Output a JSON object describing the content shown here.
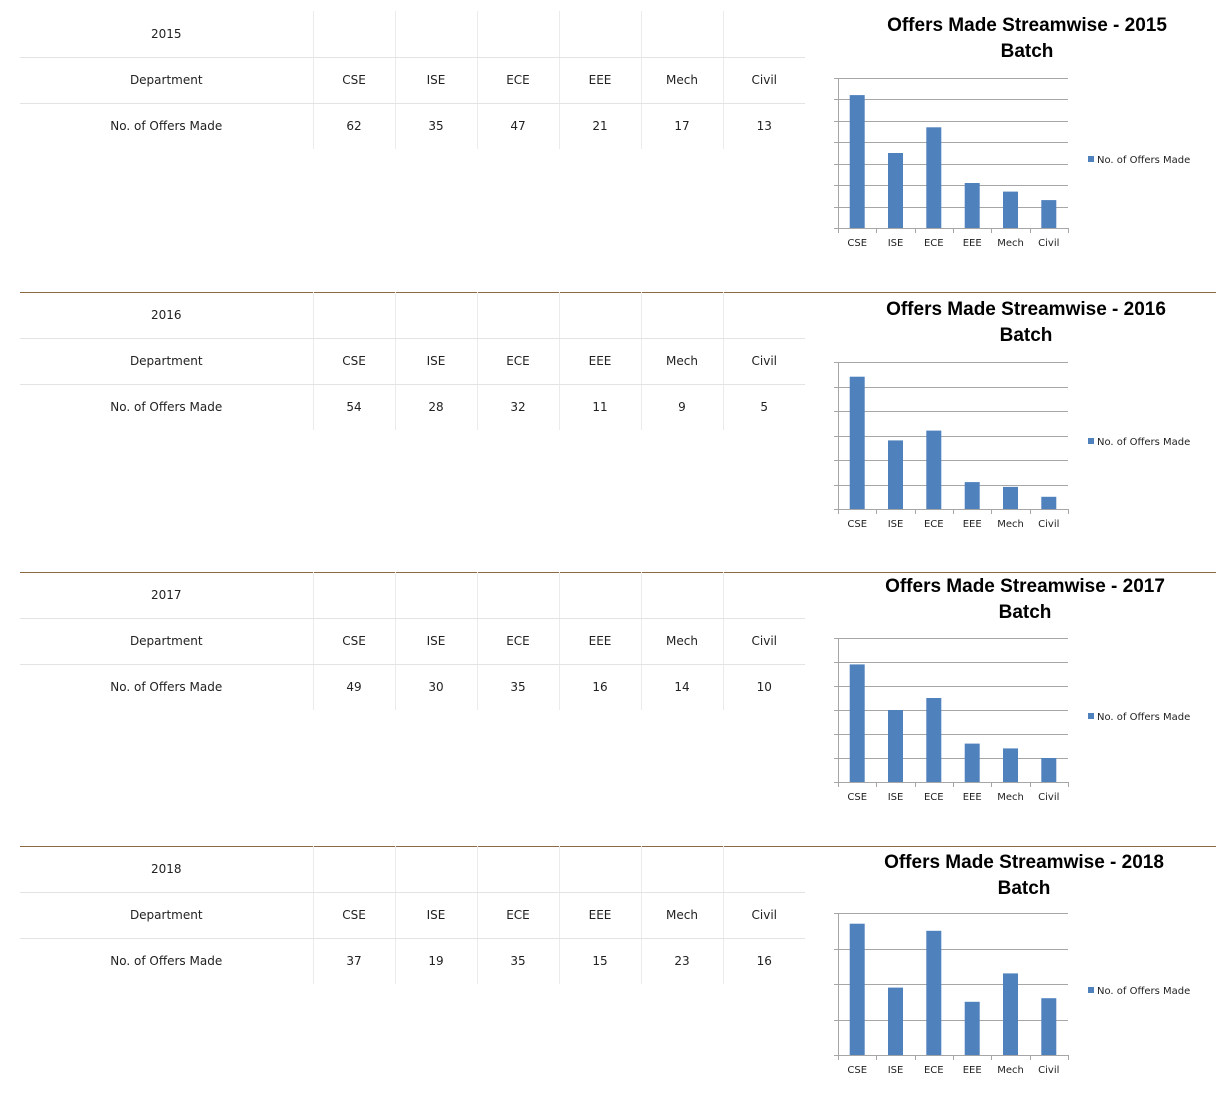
{
  "colors": {
    "bar": "#4f81bd",
    "grid": "#a6a6a6",
    "divider": "#8b6a43"
  },
  "sections": [
    {
      "year": "2015",
      "table": {
        "header_label": "Department",
        "row_label": "No. of Offers Made",
        "departments": [
          "CSE",
          "ISE",
          "ECE",
          "EEE",
          "Mech",
          "Civil"
        ],
        "offers": [
          "62",
          "35",
          "47",
          "21",
          "17",
          "13"
        ]
      },
      "chart_title_line1": "Offers Made Streamwise - 2015",
      "chart_title_line2": "Batch"
    },
    {
      "year": "2016",
      "table": {
        "header_label": "Department",
        "row_label": "No. of Offers Made",
        "departments": [
          "CSE",
          "ISE",
          "ECE",
          "EEE",
          "Mech",
          "Civil"
        ],
        "offers": [
          "54",
          "28",
          "32",
          "11",
          "9",
          "5"
        ]
      },
      "chart_title_line1": "Offers Made Streamwise - 2016",
      "chart_title_line2": "Batch"
    },
    {
      "year": "2017",
      "table": {
        "header_label": "Department",
        "row_label": "No. of Offers Made",
        "departments": [
          "CSE",
          "ISE",
          "ECE",
          "EEE",
          "Mech",
          "Civil"
        ],
        "offers": [
          "49",
          "30",
          "35",
          "16",
          "14",
          "10"
        ]
      },
      "chart_title_line1": "Offers Made Streamwise - 2017",
      "chart_title_line2": "Batch"
    },
    {
      "year": "2018",
      "table": {
        "header_label": "Department",
        "row_label": "No. of Offers Made",
        "departments": [
          "CSE",
          "ISE",
          "ECE",
          "EEE",
          "Mech",
          "Civil"
        ],
        "offers": [
          "37",
          "19",
          "35",
          "15",
          "23",
          "16"
        ]
      },
      "chart_title_line1": "Offers Made Streamwise - 2018",
      "chart_title_line2": "Batch"
    }
  ],
  "chart_data": [
    {
      "type": "bar",
      "title": "Offers Made Streamwise - 2015 Batch",
      "categories": [
        "CSE",
        "ISE",
        "ECE",
        "EEE",
        "Mech",
        "Civil"
      ],
      "series": [
        {
          "name": "No. of Offers Made",
          "values": [
            62,
            35,
            47,
            21,
            17,
            13
          ]
        }
      ],
      "ylim": [
        0,
        70
      ],
      "grid": true,
      "legend": "right",
      "y_tick_labels_visible": false
    },
    {
      "type": "bar",
      "title": "Offers Made Streamwise - 2016 Batch",
      "categories": [
        "CSE",
        "ISE",
        "ECE",
        "EEE",
        "Mech",
        "Civil"
      ],
      "series": [
        {
          "name": "No. of Offers Made",
          "values": [
            54,
            28,
            32,
            11,
            9,
            5
          ]
        }
      ],
      "ylim": [
        0,
        60
      ],
      "grid": true,
      "legend": "right",
      "y_tick_labels_visible": false
    },
    {
      "type": "bar",
      "title": "Offers Made Streamwise - 2017 Batch",
      "categories": [
        "CSE",
        "ISE",
        "ECE",
        "EEE",
        "Mech",
        "Civil"
      ],
      "series": [
        {
          "name": "No. of Offers Made",
          "values": [
            49,
            30,
            35,
            16,
            14,
            10
          ]
        }
      ],
      "ylim": [
        0,
        60
      ],
      "grid": true,
      "legend": "right",
      "y_tick_labels_visible": false
    },
    {
      "type": "bar",
      "title": "Offers Made Streamwise - 2018 Batch",
      "categories": [
        "CSE",
        "ISE",
        "ECE",
        "EEE",
        "Mech",
        "Civil"
      ],
      "series": [
        {
          "name": "No. of Offers Made",
          "values": [
            37,
            19,
            35,
            15,
            23,
            16
          ]
        }
      ],
      "ylim": [
        0,
        40
      ],
      "grid": true,
      "legend": "right",
      "y_tick_labels_visible": false
    }
  ]
}
